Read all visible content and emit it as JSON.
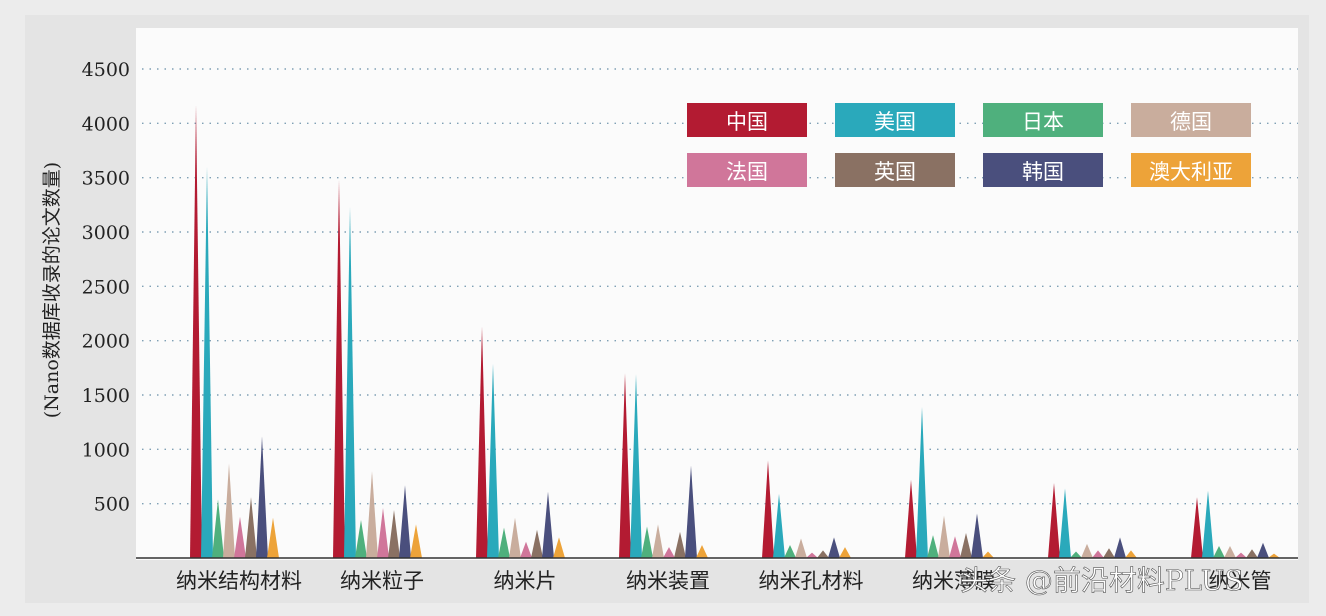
{
  "chart_data": {
    "type": "area",
    "ylabel": "(Nano数据库收录的论文数量)",
    "ylim": [
      0,
      4500
    ],
    "yticks": [
      500,
      1000,
      1500,
      2000,
      2500,
      3000,
      3500,
      4000,
      4500
    ],
    "grid": "horizontal-dotted",
    "legend_position": "top-right",
    "categories": [
      "纳米结构材料",
      "纳米粒子",
      "纳米片",
      "纳米装置",
      "纳米孔材料",
      "纳米薄膜",
      "",
      "纳米管"
    ],
    "series": [
      {
        "name": "中国",
        "color": "#b31b32",
        "values": [
          4170,
          3480,
          2130,
          1700,
          900,
          720,
          690,
          560
        ]
      },
      {
        "name": "美国",
        "color": "#2aa9bb",
        "values": [
          3600,
          3230,
          1790,
          1690,
          590,
          1390,
          640,
          620
        ]
      },
      {
        "name": "日本",
        "color": "#4fb07d",
        "values": [
          540,
          350,
          280,
          290,
          120,
          210,
          60,
          110
        ]
      },
      {
        "name": "德国",
        "color": "#c9ad9d",
        "values": [
          870,
          800,
          370,
          310,
          180,
          390,
          130,
          110
        ]
      },
      {
        "name": "法国",
        "color": "#d0769a",
        "values": [
          380,
          460,
          150,
          100,
          50,
          200,
          70,
          50
        ]
      },
      {
        "name": "英国",
        "color": "#8a7163",
        "values": [
          560,
          440,
          260,
          240,
          70,
          230,
          90,
          80
        ]
      },
      {
        "name": "韩国",
        "color": "#4a4f7d",
        "values": [
          1120,
          670,
          610,
          850,
          190,
          410,
          190,
          140
        ]
      },
      {
        "name": "澳大利亚",
        "color": "#eda339",
        "values": [
          370,
          310,
          190,
          120,
          100,
          60,
          70,
          40
        ]
      }
    ]
  },
  "watermark": "头条 @前沿材料PLUS"
}
